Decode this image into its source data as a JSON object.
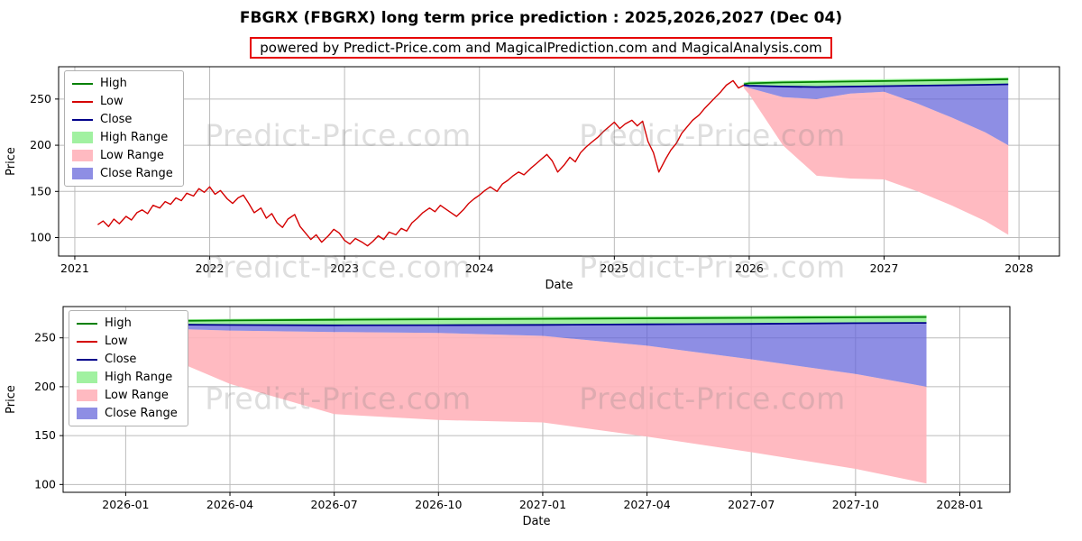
{
  "header": {
    "title": "FBGRX (FBGRX) long term price prediction : 2025,2026,2027 (Dec 04)",
    "subtitle": "powered by Predict-Price.com and MagicalPrediction.com and MagicalAnalysis.com"
  },
  "watermark": {
    "text": "Predict-Price.com"
  },
  "colors": {
    "high": "#008000",
    "low": "#d40000",
    "close": "#00008b",
    "high_range": "rgba(144,238,144,0.85)",
    "low_range": "rgba(255,179,186,0.9)",
    "close_range": "rgba(99,99,218,0.72)",
    "grid": "#bbbbbb",
    "axis": "#000000"
  },
  "legend": {
    "items": [
      {
        "label": "High",
        "swatch": "line",
        "color_key": "high"
      },
      {
        "label": "Low",
        "swatch": "line",
        "color_key": "low"
      },
      {
        "label": "Close",
        "swatch": "line",
        "color_key": "close"
      },
      {
        "label": "High Range",
        "swatch": "patch",
        "color_key": "high_range"
      },
      {
        "label": "Low Range",
        "swatch": "patch",
        "color_key": "low_range"
      },
      {
        "label": "Close Range",
        "swatch": "patch",
        "color_key": "close_range"
      }
    ]
  },
  "chart_data": [
    {
      "type": "line",
      "name": "full-history-and-forecast",
      "xlabel": "Date",
      "ylabel": "Price",
      "xlim": [
        2020.88,
        2028.3
      ],
      "ylim": [
        80,
        285
      ],
      "xticks": [
        {
          "v": 2021,
          "label": "2021"
        },
        {
          "v": 2022,
          "label": "2022"
        },
        {
          "v": 2023,
          "label": "2023"
        },
        {
          "v": 2024,
          "label": "2024"
        },
        {
          "v": 2025,
          "label": "2025"
        },
        {
          "v": 2026,
          "label": "2026"
        },
        {
          "v": 2027,
          "label": "2027"
        },
        {
          "v": 2028,
          "label": "2028"
        }
      ],
      "yticks": [
        {
          "v": 100,
          "label": "100"
        },
        {
          "v": 150,
          "label": "150"
        },
        {
          "v": 200,
          "label": "200"
        },
        {
          "v": 250,
          "label": "250"
        }
      ],
      "bands": [
        {
          "name": "Low Range",
          "color_key": "low_range",
          "x": [
            2025.96,
            2026.0,
            2026.25,
            2026.5,
            2026.75,
            2027.0,
            2027.25,
            2027.5,
            2027.75,
            2027.92
          ],
          "upper": [
            264,
            262,
            252,
            250,
            256,
            258,
            245,
            230,
            214,
            200
          ],
          "lower": [
            262,
            255,
            200,
            167,
            164,
            163,
            150,
            135,
            118,
            103
          ]
        },
        {
          "name": "Close Range",
          "color_key": "close_range",
          "x": [
            2025.96,
            2026.0,
            2026.25,
            2026.5,
            2026.75,
            2027.0,
            2027.25,
            2027.5,
            2027.75,
            2027.92
          ],
          "upper": [
            265,
            264.5,
            263.5,
            263,
            263.5,
            264,
            264.5,
            265,
            265.5,
            266
          ],
          "lower": [
            264,
            262,
            252,
            250,
            256,
            258,
            245,
            230,
            214,
            200
          ]
        },
        {
          "name": "High Range",
          "color_key": "high_range",
          "x": [
            2025.96,
            2026.0,
            2026.25,
            2026.5,
            2026.75,
            2027.0,
            2027.25,
            2027.5,
            2027.75,
            2027.92
          ],
          "upper": [
            268,
            269,
            270,
            270.5,
            271,
            271.5,
            272,
            272.5,
            273,
            273.5
          ],
          "lower": [
            265,
            264.5,
            263.5,
            263,
            263.5,
            264,
            264.5,
            265,
            265.5,
            266
          ]
        }
      ],
      "series": [
        {
          "name": "Low",
          "color_key": "low",
          "width": 1.4,
          "points": [
            [
              2021.17,
              114
            ],
            [
              2021.21,
              118
            ],
            [
              2021.25,
              112
            ],
            [
              2021.29,
              120
            ],
            [
              2021.33,
              115
            ],
            [
              2021.38,
              123
            ],
            [
              2021.42,
              119
            ],
            [
              2021.46,
              127
            ],
            [
              2021.5,
              130
            ],
            [
              2021.54,
              126
            ],
            [
              2021.58,
              135
            ],
            [
              2021.63,
              132
            ],
            [
              2021.67,
              139
            ],
            [
              2021.71,
              136
            ],
            [
              2021.75,
              143
            ],
            [
              2021.79,
              140
            ],
            [
              2021.83,
              148
            ],
            [
              2021.88,
              145
            ],
            [
              2021.92,
              153
            ],
            [
              2021.96,
              149
            ],
            [
              2022.0,
              155
            ],
            [
              2022.04,
              147
            ],
            [
              2022.08,
              151
            ],
            [
              2022.13,
              142
            ],
            [
              2022.17,
              137
            ],
            [
              2022.21,
              143
            ],
            [
              2022.25,
              146
            ],
            [
              2022.29,
              137
            ],
            [
              2022.33,
              127
            ],
            [
              2022.38,
              132
            ],
            [
              2022.42,
              121
            ],
            [
              2022.46,
              126
            ],
            [
              2022.5,
              116
            ],
            [
              2022.54,
              111
            ],
            [
              2022.58,
              120
            ],
            [
              2022.63,
              125
            ],
            [
              2022.67,
              112
            ],
            [
              2022.71,
              105
            ],
            [
              2022.75,
              98
            ],
            [
              2022.79,
              103
            ],
            [
              2022.83,
              95
            ],
            [
              2022.88,
              102
            ],
            [
              2022.92,
              109
            ],
            [
              2022.96,
              105
            ],
            [
              2023.0,
              97
            ],
            [
              2023.04,
              93
            ],
            [
              2023.08,
              99
            ],
            [
              2023.13,
              95
            ],
            [
              2023.17,
              91
            ],
            [
              2023.21,
              96
            ],
            [
              2023.25,
              102
            ],
            [
              2023.29,
              98
            ],
            [
              2023.33,
              106
            ],
            [
              2023.38,
              103
            ],
            [
              2023.42,
              110
            ],
            [
              2023.46,
              107
            ],
            [
              2023.5,
              116
            ],
            [
              2023.54,
              121
            ],
            [
              2023.58,
              127
            ],
            [
              2023.63,
              132
            ],
            [
              2023.67,
              128
            ],
            [
              2023.71,
              135
            ],
            [
              2023.75,
              131
            ],
            [
              2023.79,
              127
            ],
            [
              2023.83,
              123
            ],
            [
              2023.88,
              130
            ],
            [
              2023.92,
              137
            ],
            [
              2023.96,
              142
            ],
            [
              2024.0,
              146
            ],
            [
              2024.04,
              151
            ],
            [
              2024.08,
              155
            ],
            [
              2024.13,
              150
            ],
            [
              2024.17,
              158
            ],
            [
              2024.21,
              162
            ],
            [
              2024.25,
              167
            ],
            [
              2024.29,
              171
            ],
            [
              2024.33,
              168
            ],
            [
              2024.38,
              175
            ],
            [
              2024.42,
              180
            ],
            [
              2024.46,
              185
            ],
            [
              2024.5,
              190
            ],
            [
              2024.54,
              183
            ],
            [
              2024.58,
              171
            ],
            [
              2024.63,
              179
            ],
            [
              2024.67,
              187
            ],
            [
              2024.71,
              182
            ],
            [
              2024.75,
              192
            ],
            [
              2024.79,
              198
            ],
            [
              2024.83,
              203
            ],
            [
              2024.88,
              209
            ],
            [
              2024.92,
              215
            ],
            [
              2024.96,
              220
            ],
            [
              2025.0,
              225
            ],
            [
              2025.04,
              218
            ],
            [
              2025.08,
              223
            ],
            [
              2025.13,
              227
            ],
            [
              2025.17,
              221
            ],
            [
              2025.21,
              226
            ],
            [
              2025.25,
              204
            ],
            [
              2025.29,
              192
            ],
            [
              2025.33,
              171
            ],
            [
              2025.38,
              185
            ],
            [
              2025.42,
              195
            ],
            [
              2025.46,
              202
            ],
            [
              2025.5,
              213
            ],
            [
              2025.54,
              220
            ],
            [
              2025.58,
              227
            ],
            [
              2025.63,
              233
            ],
            [
              2025.67,
              240
            ],
            [
              2025.71,
              246
            ],
            [
              2025.75,
              252
            ],
            [
              2025.79,
              258
            ],
            [
              2025.83,
              265
            ],
            [
              2025.88,
              270
            ],
            [
              2025.92,
              262
            ],
            [
              2025.96,
              265
            ]
          ]
        },
        {
          "name": "High",
          "color_key": "high",
          "width": 1.8,
          "points": [
            [
              2025.96,
              266
            ],
            [
              2026.0,
              267
            ],
            [
              2026.25,
              268
            ],
            [
              2026.5,
              268.5
            ],
            [
              2026.75,
              269
            ],
            [
              2027.0,
              269.5
            ],
            [
              2027.25,
              270
            ],
            [
              2027.5,
              270.5
            ],
            [
              2027.75,
              271
            ],
            [
              2027.92,
              271.5
            ]
          ]
        },
        {
          "name": "Close",
          "color_key": "close",
          "width": 1.8,
          "points": [
            [
              2025.96,
              265
            ],
            [
              2026.0,
              264.5
            ],
            [
              2026.25,
              263.5
            ],
            [
              2026.5,
              263
            ],
            [
              2026.75,
              263.5
            ],
            [
              2027.0,
              264
            ],
            [
              2027.25,
              264.5
            ],
            [
              2027.5,
              265
            ],
            [
              2027.75,
              265.5
            ],
            [
              2027.92,
              266
            ]
          ]
        }
      ]
    },
    {
      "type": "line",
      "name": "forecast-detail",
      "xlabel": "Date",
      "ylabel": "Price",
      "xlim": [
        2025.85,
        2028.12
      ],
      "ylim": [
        92,
        282
      ],
      "xticks": [
        {
          "v": 2026.0,
          "label": "2026-01"
        },
        {
          "v": 2026.25,
          "label": "2026-04"
        },
        {
          "v": 2026.5,
          "label": "2026-07"
        },
        {
          "v": 2026.75,
          "label": "2026-10"
        },
        {
          "v": 2027.0,
          "label": "2027-01"
        },
        {
          "v": 2027.25,
          "label": "2027-04"
        },
        {
          "v": 2027.5,
          "label": "2027-07"
        },
        {
          "v": 2027.75,
          "label": "2027-10"
        },
        {
          "v": 2028.0,
          "label": "2028-01"
        }
      ],
      "yticks": [
        {
          "v": 100,
          "label": "100"
        },
        {
          "v": 150,
          "label": "150"
        },
        {
          "v": 200,
          "label": "200"
        },
        {
          "v": 250,
          "label": "250"
        }
      ],
      "bands": [
        {
          "name": "Low Range",
          "color_key": "low_range",
          "x": [
            2025.88,
            2026.0,
            2026.25,
            2026.5,
            2026.75,
            2027.0,
            2027.25,
            2027.5,
            2027.75,
            2027.92
          ],
          "upper": [
            262,
            260.5,
            257.5,
            256,
            255,
            252,
            242,
            228,
            213,
            200
          ],
          "lower": [
            258,
            248,
            203,
            172,
            166,
            163.5,
            149,
            133,
            116,
            101
          ]
        },
        {
          "name": "Close Range",
          "color_key": "close_range",
          "x": [
            2025.88,
            2026.0,
            2026.25,
            2026.5,
            2026.75,
            2027.0,
            2027.25,
            2027.5,
            2027.75,
            2027.92
          ],
          "upper": [
            264,
            263.8,
            263.2,
            262.8,
            263,
            263.3,
            263.8,
            264.3,
            265,
            265.3
          ],
          "lower": [
            262,
            260.5,
            257.5,
            256,
            255,
            252,
            242,
            228,
            213,
            200
          ]
        },
        {
          "name": "High Range",
          "color_key": "high_range",
          "x": [
            2025.88,
            2026.0,
            2026.25,
            2026.5,
            2026.75,
            2027.0,
            2027.25,
            2027.5,
            2027.75,
            2027.92
          ],
          "upper": [
            268,
            268.5,
            269.5,
            270.3,
            271,
            271.5,
            272,
            272.5,
            273,
            273.3
          ],
          "lower": [
            264,
            263.8,
            263.2,
            262.8,
            263,
            263.3,
            263.8,
            264.3,
            265,
            265.3
          ]
        }
      ],
      "series": [
        {
          "name": "Low",
          "color_key": "low",
          "width": 1.4,
          "points": [
            [
              2025.88,
              268
            ],
            [
              2025.92,
              262
            ],
            [
              2025.96,
              264.5
            ]
          ]
        },
        {
          "name": "High",
          "color_key": "high",
          "width": 1.8,
          "points": [
            [
              2025.88,
              266.5
            ],
            [
              2026.0,
              267
            ],
            [
              2026.25,
              267.8
            ],
            [
              2026.5,
              268.4
            ],
            [
              2026.75,
              269
            ],
            [
              2027.0,
              269.5
            ],
            [
              2027.25,
              270
            ],
            [
              2027.5,
              270.5
            ],
            [
              2027.75,
              271
            ],
            [
              2027.92,
              271.3
            ]
          ]
        },
        {
          "name": "Close",
          "color_key": "close",
          "width": 1.8,
          "points": [
            [
              2025.88,
              264
            ],
            [
              2026.0,
              263.8
            ],
            [
              2026.25,
              263.2
            ],
            [
              2026.5,
              262.8
            ],
            [
              2026.75,
              263
            ],
            [
              2027.0,
              263.3
            ],
            [
              2027.25,
              263.8
            ],
            [
              2027.5,
              264.3
            ],
            [
              2027.75,
              265
            ],
            [
              2027.92,
              265.3
            ]
          ]
        }
      ]
    }
  ]
}
